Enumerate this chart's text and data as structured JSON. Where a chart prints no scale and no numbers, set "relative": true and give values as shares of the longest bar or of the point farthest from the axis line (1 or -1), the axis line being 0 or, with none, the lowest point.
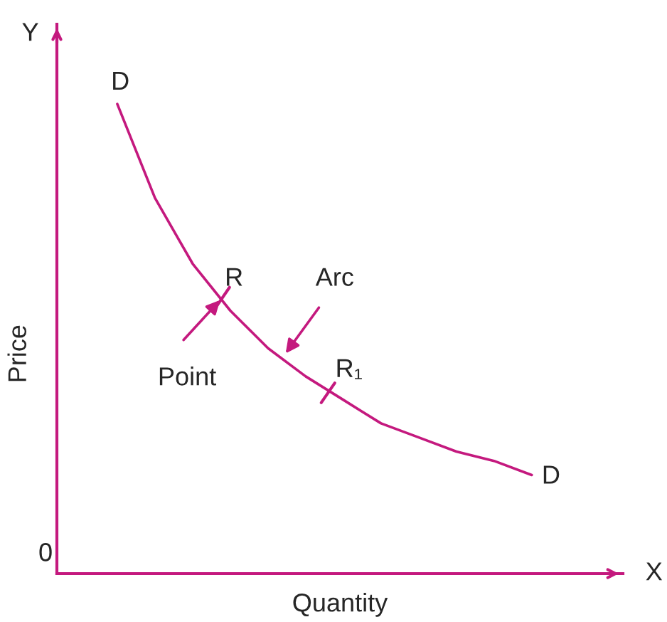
{
  "chart_data": {
    "type": "line",
    "relative": true,
    "xlabel": "Quantity",
    "ylabel": "Price",
    "categories": [
      null,
      null,
      null,
      null,
      null,
      null,
      null,
      null,
      null,
      null,
      null,
      null
    ],
    "series": [
      {
        "color": "#c4197e",
        "values": [
          1,
          0.8,
          0.66,
          0.56,
          0.48,
          0.42,
          0.37,
          0.32,
          0.29,
          0.26,
          0.24,
          0.21
        ]
      }
    ],
    "annotations": [
      "Y",
      "X",
      "0",
      "D",
      "D",
      "R",
      "R₁",
      "Point",
      "Arc"
    ],
    "marker": "none",
    "line_style": "solid",
    "grid": false,
    "legend": false
  }
}
